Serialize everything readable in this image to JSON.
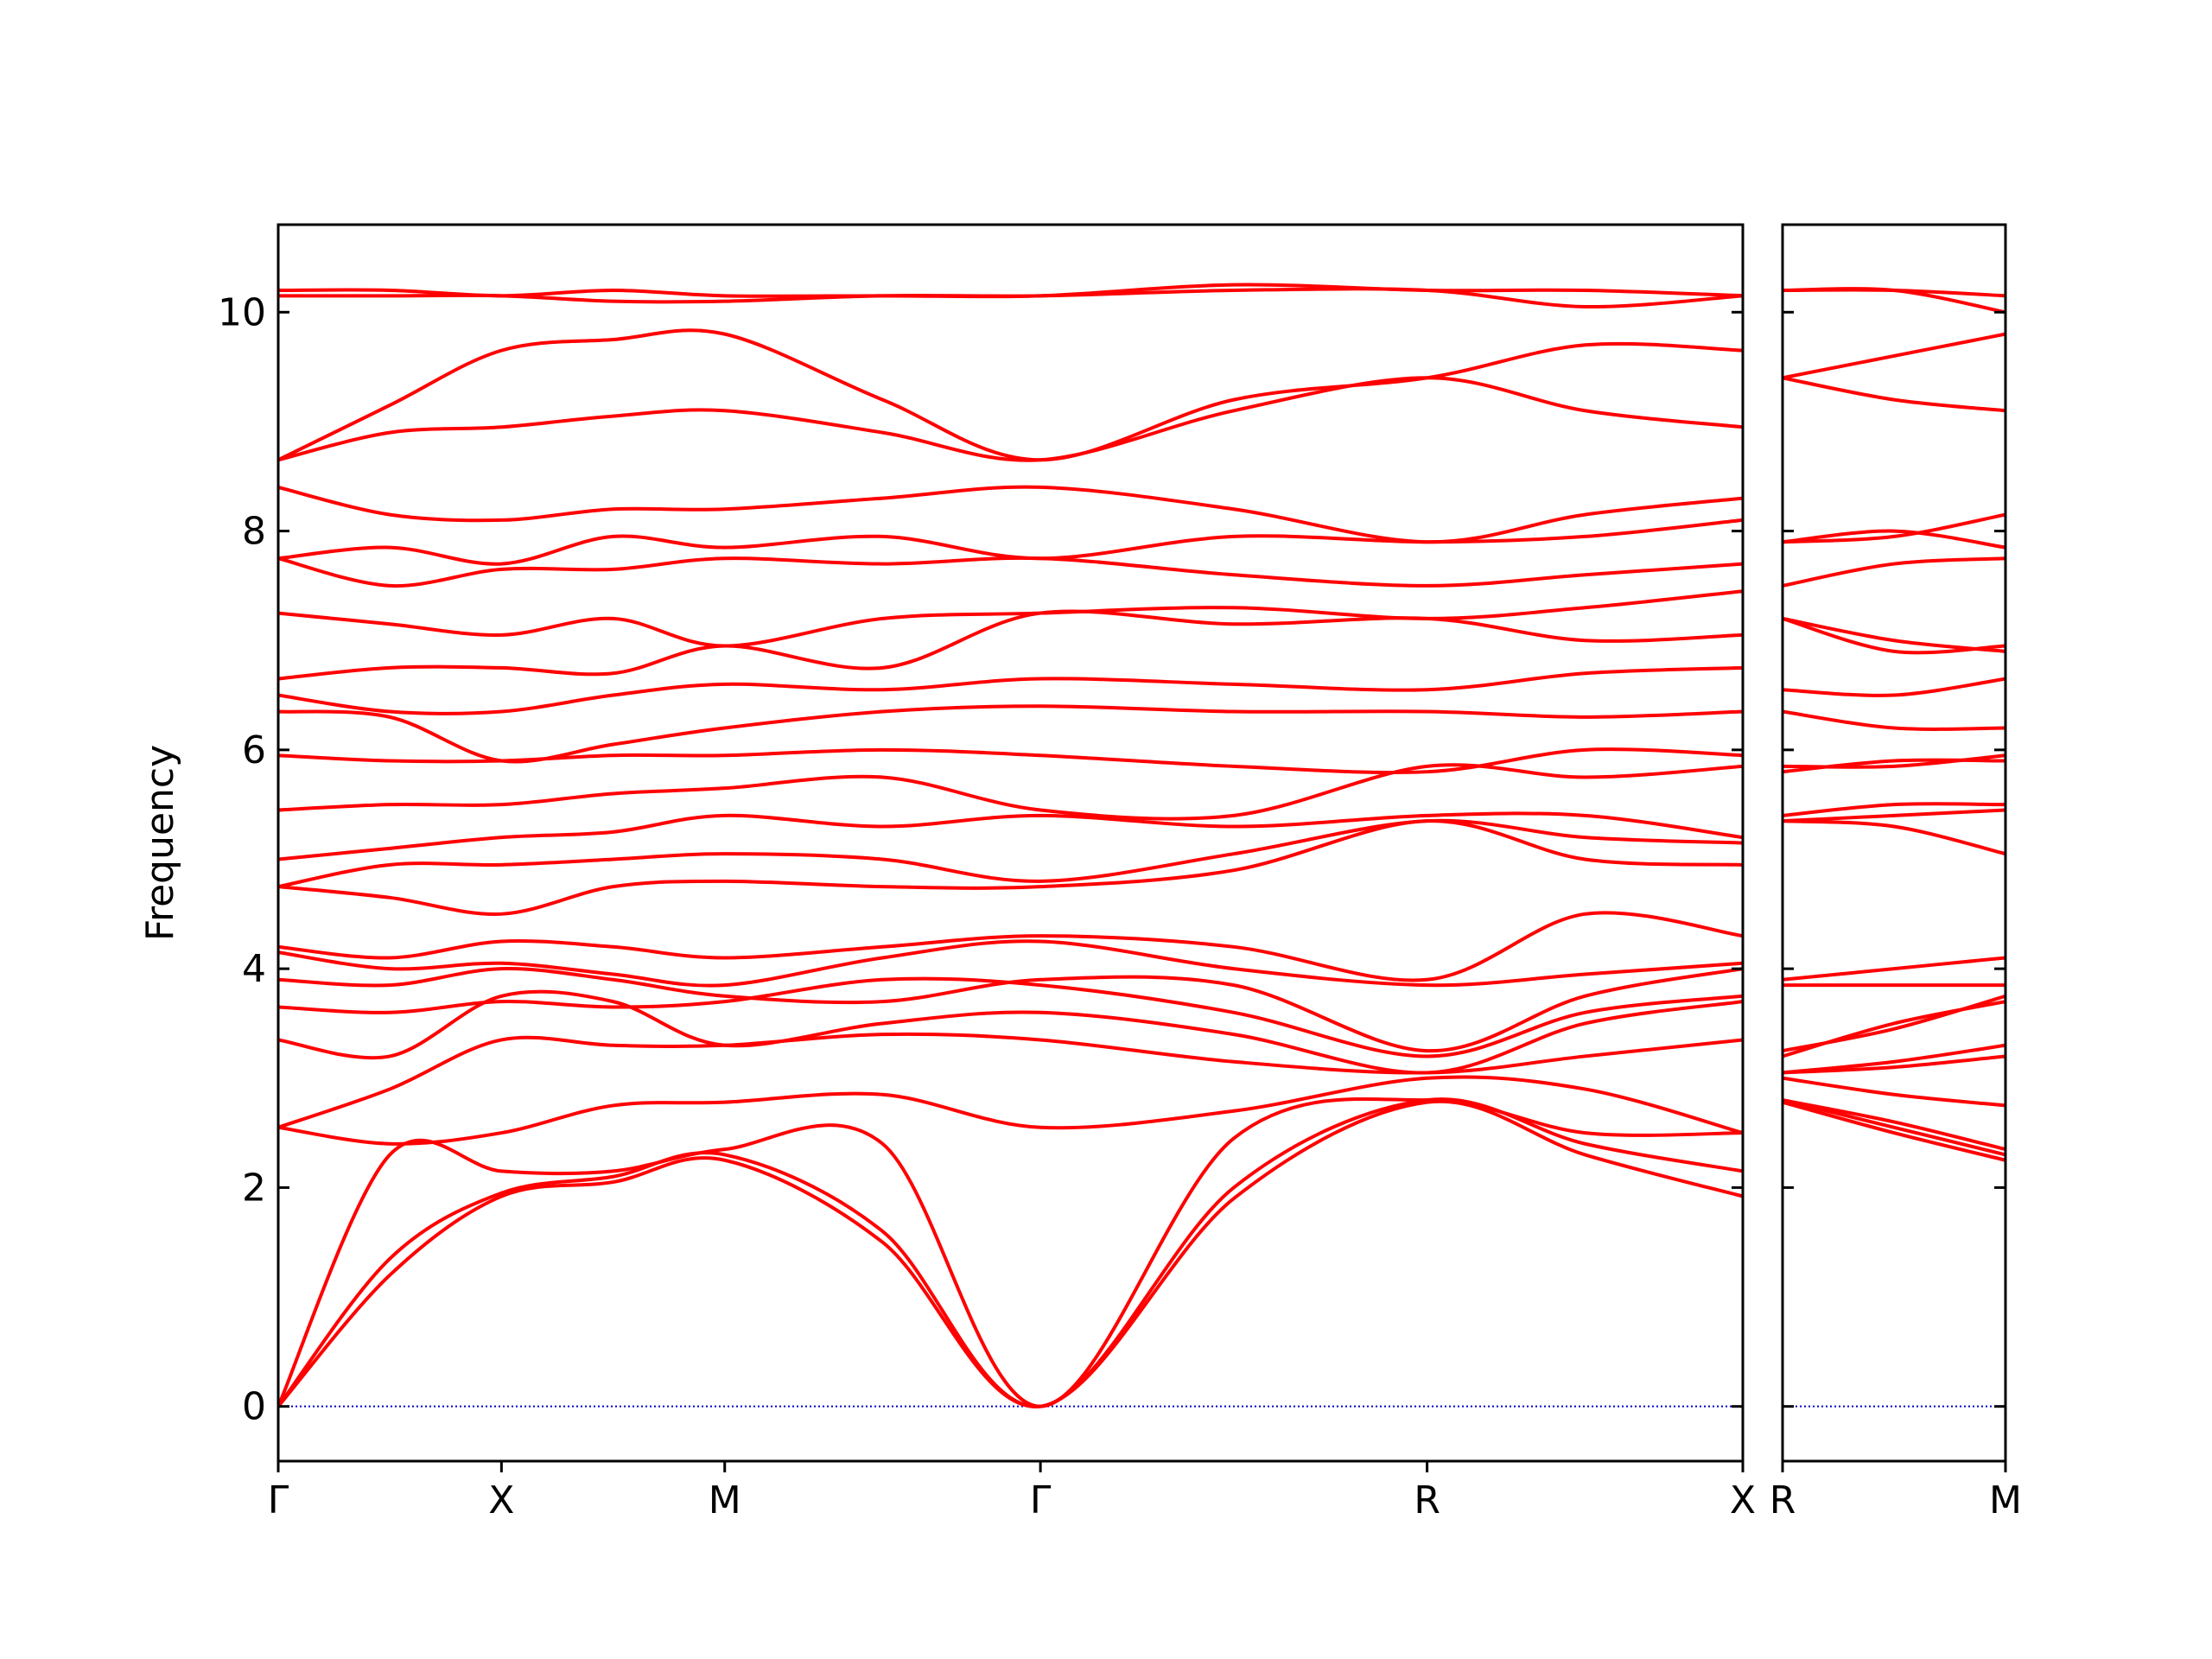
{
  "chart_data": [
    {
      "type": "line",
      "ylabel": "Frequency",
      "color": "#ff0000",
      "zero_line_color": "#0000cc",
      "show_ytick_labels": true,
      "xlim": [
        0,
        3.2802
      ],
      "ylim": [
        -0.5,
        10.8
      ],
      "yticks": [
        0,
        2,
        4,
        6,
        8,
        10
      ],
      "xticks": [
        {
          "value": 0,
          "label": "Γ"
        },
        {
          "value": 0.5,
          "label": "X"
        },
        {
          "value": 1.0,
          "label": "M"
        },
        {
          "value": 1.7071,
          "label": "Γ"
        },
        {
          "value": 2.5731,
          "label": "R"
        },
        {
          "value": 3.2802,
          "label": "X"
        }
      ],
      "x": [
        0,
        0.25,
        0.5,
        0.75,
        1.0,
        1.3536,
        1.7071,
        2.1401,
        2.5731,
        2.9267,
        3.2802
      ],
      "series": [
        {
          "values": [
            0,
            1.2,
            1.92,
            2.05,
            2.25,
            1.5,
            0,
            1.9,
            2.78,
            2.3,
            1.92
          ]
        },
        {
          "values": [
            0,
            1.35,
            1.95,
            2.1,
            2.3,
            1.6,
            0,
            2.0,
            2.8,
            2.4,
            2.15
          ]
        },
        {
          "values": [
            0,
            2.3,
            2.15,
            2.15,
            2.35,
            2.4,
            0,
            2.45,
            2.8,
            2.5,
            2.5
          ]
        },
        {
          "values": [
            2.55,
            2.4,
            2.5,
            2.75,
            2.78,
            2.85,
            2.55,
            2.7,
            3.0,
            2.9,
            2.5
          ]
        },
        {
          "values": [
            2.55,
            2.9,
            3.35,
            3.3,
            3.3,
            3.4,
            3.35,
            3.15,
            3.05,
            3.2,
            3.35
          ]
        },
        {
          "values": [
            3.35,
            3.2,
            3.75,
            3.7,
            3.3,
            3.5,
            3.6,
            3.4,
            3.05,
            3.5,
            3.7
          ]
        },
        {
          "values": [
            3.65,
            3.6,
            3.7,
            3.65,
            3.7,
            3.9,
            3.85,
            3.6,
            3.2,
            3.6,
            3.75
          ]
        },
        {
          "values": [
            3.9,
            3.85,
            4.0,
            3.9,
            3.75,
            3.7,
            3.9,
            3.85,
            3.25,
            3.75,
            4.0
          ]
        },
        {
          "values": [
            4.15,
            4.0,
            4.05,
            3.95,
            3.85,
            4.1,
            4.25,
            4.0,
            3.85,
            3.95,
            4.05
          ]
        },
        {
          "values": [
            4.2,
            4.1,
            4.25,
            4.2,
            4.1,
            4.2,
            4.3,
            4.2,
            3.9,
            4.5,
            4.3
          ]
        },
        {
          "values": [
            4.75,
            4.65,
            4.5,
            4.75,
            4.8,
            4.75,
            4.75,
            4.9,
            5.35,
            5.0,
            4.95
          ]
        },
        {
          "values": [
            4.75,
            4.95,
            4.95,
            5.0,
            5.05,
            5.0,
            4.8,
            5.05,
            5.35,
            5.2,
            5.15
          ]
        },
        {
          "values": [
            5.0,
            5.1,
            5.2,
            5.25,
            5.4,
            5.3,
            5.4,
            5.3,
            5.4,
            5.4,
            5.2
          ]
        },
        {
          "values": [
            5.45,
            5.5,
            5.5,
            5.6,
            5.65,
            5.75,
            5.45,
            5.4,
            5.85,
            5.75,
            5.85
          ]
        },
        {
          "values": [
            5.95,
            5.9,
            5.9,
            5.95,
            5.95,
            6.0,
            5.95,
            5.85,
            5.8,
            6.0,
            5.95
          ]
        },
        {
          "values": [
            6.35,
            6.3,
            5.9,
            6.05,
            6.2,
            6.35,
            6.4,
            6.35,
            6.35,
            6.3,
            6.35
          ]
        },
        {
          "values": [
            6.5,
            6.35,
            6.35,
            6.5,
            6.6,
            6.55,
            6.65,
            6.6,
            6.55,
            6.7,
            6.75
          ]
        },
        {
          "values": [
            6.65,
            6.75,
            6.75,
            6.7,
            6.95,
            6.75,
            7.25,
            7.15,
            7.2,
            7.0,
            7.05
          ]
        },
        {
          "values": [
            7.25,
            7.15,
            7.05,
            7.2,
            6.95,
            7.2,
            7.25,
            7.3,
            7.2,
            7.3,
            7.45
          ]
        },
        {
          "values": [
            7.75,
            7.5,
            7.65,
            7.65,
            7.75,
            7.7,
            7.75,
            7.6,
            7.5,
            7.6,
            7.7
          ]
        },
        {
          "values": [
            7.75,
            7.85,
            7.7,
            7.95,
            7.85,
            7.95,
            7.75,
            7.95,
            7.9,
            7.95,
            8.1
          ]
        },
        {
          "values": [
            8.4,
            8.15,
            8.1,
            8.2,
            8.2,
            8.3,
            8.4,
            8.2,
            7.9,
            8.15,
            8.3
          ]
        },
        {
          "values": [
            8.65,
            8.9,
            8.95,
            9.05,
            9.1,
            8.9,
            8.65,
            9.1,
            9.4,
            9.1,
            8.95
          ]
        },
        {
          "values": [
            8.65,
            9.15,
            9.65,
            9.75,
            9.8,
            9.2,
            8.65,
            9.2,
            9.4,
            9.7,
            9.65
          ]
        },
        {
          "values": [
            10.15,
            10.15,
            10.15,
            10.1,
            10.1,
            10.15,
            10.15,
            10.2,
            10.2,
            10.05,
            10.15
          ]
        },
        {
          "values": [
            10.2,
            10.2,
            10.15,
            10.2,
            10.15,
            10.15,
            10.15,
            10.25,
            10.2,
            10.2,
            10.15
          ]
        }
      ]
    },
    {
      "type": "line",
      "color": "#ff0000",
      "zero_line_color": "#0000cc",
      "show_ytick_labels": false,
      "xlim": [
        0,
        0.5
      ],
      "ylim": [
        -0.5,
        10.8
      ],
      "yticks": [
        0,
        2,
        4,
        6,
        8,
        10
      ],
      "xticks": [
        {
          "value": 0,
          "label": "R"
        },
        {
          "value": 0.5,
          "label": "M"
        }
      ],
      "x": [
        0,
        0.25,
        0.5
      ],
      "series": [
        {
          "values": [
            2.78,
            2.5,
            2.25
          ]
        },
        {
          "values": [
            2.8,
            2.55,
            2.3
          ]
        },
        {
          "values": [
            2.8,
            2.6,
            2.35
          ]
        },
        {
          "values": [
            3.0,
            2.85,
            2.75
          ]
        },
        {
          "values": [
            3.05,
            3.1,
            3.2
          ]
        },
        {
          "values": [
            3.05,
            3.15,
            3.3
          ]
        },
        {
          "values": [
            3.2,
            3.5,
            3.7
          ]
        },
        {
          "values": [
            3.25,
            3.45,
            3.75
          ]
        },
        {
          "values": [
            3.85,
            3.85,
            3.85
          ]
        },
        {
          "values": [
            3.9,
            4.0,
            4.1
          ]
        },
        {
          "values": [
            5.35,
            5.3,
            5.05
          ]
        },
        {
          "values": [
            5.35,
            5.4,
            5.45
          ]
        },
        {
          "values": [
            5.4,
            5.5,
            5.5
          ]
        },
        {
          "values": [
            5.85,
            5.85,
            5.95
          ]
        },
        {
          "values": [
            5.8,
            5.9,
            5.9
          ]
        },
        {
          "values": [
            6.35,
            6.2,
            6.2
          ]
        },
        {
          "values": [
            6.55,
            6.5,
            6.65
          ]
        },
        {
          "values": [
            7.2,
            6.9,
            6.95
          ]
        },
        {
          "values": [
            7.2,
            7.0,
            6.9
          ]
        },
        {
          "values": [
            7.5,
            7.7,
            7.75
          ]
        },
        {
          "values": [
            7.9,
            7.95,
            8.15
          ]
        },
        {
          "values": [
            7.9,
            8.0,
            7.85
          ]
        },
        {
          "values": [
            9.4,
            9.6,
            9.8
          ]
        },
        {
          "values": [
            9.4,
            9.2,
            9.1
          ]
        },
        {
          "values": [
            10.2,
            10.2,
            10.0
          ]
        },
        {
          "values": [
            10.2,
            10.2,
            10.15
          ]
        }
      ]
    }
  ]
}
